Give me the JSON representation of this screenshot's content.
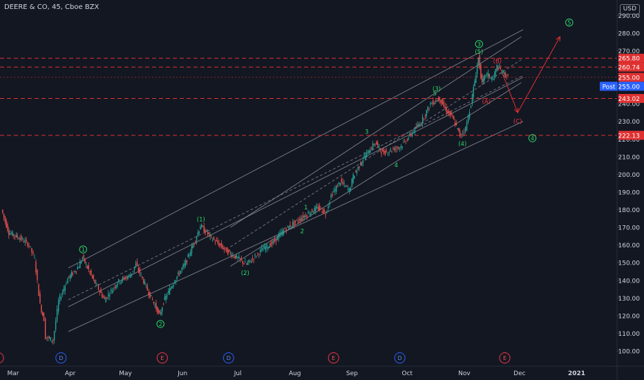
{
  "header": {
    "symbol_title": "DEERE & CO, 45, Cboe BZX",
    "currency": "USD"
  },
  "colors": {
    "background": "#131722",
    "text": "#d1d4dc",
    "up": "#26a69a",
    "down": "#ef5350",
    "channel": "#9598a1",
    "wave_green": "#2bd96a",
    "wave_red": "#f23645",
    "level_line": "#e03131",
    "post_badge": "#2962ff"
  },
  "chart_data": {
    "type": "candlestick",
    "title": "DEERE & CO, 45, Cboe BZX",
    "ylim": [
      95,
      295
    ],
    "y_ticks": [
      100,
      110,
      120,
      130,
      140,
      150,
      160,
      170,
      180,
      190,
      200,
      210,
      220,
      230,
      240,
      250,
      260,
      270,
      280,
      290
    ],
    "x_ticks": [
      "Mar",
      "Apr",
      "May",
      "Jun",
      "Jul",
      "Aug",
      "Sep",
      "Oct",
      "Nov",
      "Dec",
      "2021"
    ],
    "price_path": [
      [
        "2020-02-24",
        180
      ],
      [
        "2020-02-28",
        167
      ],
      [
        "2020-03-05",
        164
      ],
      [
        "2020-03-10",
        160
      ],
      [
        "2020-03-13",
        152
      ],
      [
        "2020-03-16",
        126
      ],
      [
        "2020-03-18",
        118
      ],
      [
        "2020-03-19",
        108
      ],
      [
        "2020-03-23",
        106
      ],
      [
        "2020-03-26",
        128
      ],
      [
        "2020-03-31",
        141
      ],
      [
        "2020-04-06",
        148
      ],
      [
        "2020-04-08",
        153
      ],
      [
        "2020-04-14",
        140
      ],
      [
        "2020-04-20",
        129
      ],
      [
        "2020-04-27",
        139
      ],
      [
        "2020-05-04",
        143
      ],
      [
        "2020-05-07",
        149
      ],
      [
        "2020-05-14",
        133
      ],
      [
        "2020-05-20",
        120
      ],
      [
        "2020-05-22",
        128
      ],
      [
        "2020-05-28",
        140
      ],
      [
        "2020-06-03",
        150
      ],
      [
        "2020-06-09",
        165
      ],
      [
        "2020-06-11",
        171
      ],
      [
        "2020-06-17",
        164
      ],
      [
        "2020-06-26",
        156
      ],
      [
        "2020-07-02",
        152
      ],
      [
        "2020-07-06",
        149
      ],
      [
        "2020-07-10",
        153
      ],
      [
        "2020-07-15",
        158
      ],
      [
        "2020-07-20",
        161
      ],
      [
        "2020-07-27",
        169
      ],
      [
        "2020-08-03",
        174
      ],
      [
        "2020-08-10",
        179
      ],
      [
        "2020-08-14",
        181
      ],
      [
        "2020-08-18",
        178
      ],
      [
        "2020-08-21",
        188
      ],
      [
        "2020-08-26",
        196
      ],
      [
        "2020-08-31",
        191
      ],
      [
        "2020-09-02",
        199
      ],
      [
        "2020-09-08",
        210
      ],
      [
        "2020-09-14",
        218
      ],
      [
        "2020-09-18",
        212
      ],
      [
        "2020-09-23",
        214
      ],
      [
        "2020-09-28",
        216
      ],
      [
        "2020-10-02",
        221
      ],
      [
        "2020-10-09",
        230
      ],
      [
        "2020-10-14",
        240
      ],
      [
        "2020-10-19",
        243
      ],
      [
        "2020-10-22",
        237
      ],
      [
        "2020-10-26",
        232
      ],
      [
        "2020-10-30",
        222
      ],
      [
        "2020-11-02",
        226
      ],
      [
        "2020-11-05",
        240
      ],
      [
        "2020-11-09",
        266
      ],
      [
        "2020-11-11",
        251
      ],
      [
        "2020-11-13",
        257
      ],
      [
        "2020-11-17",
        254
      ],
      [
        "2020-11-19",
        261
      ],
      [
        "2020-11-23",
        257
      ],
      [
        "2020-11-25",
        255
      ]
    ],
    "horizontal_levels": [
      {
        "value": 265.8,
        "label": "265.80"
      },
      {
        "value": 260.74,
        "label": "260.74"
      },
      {
        "value": 243.02,
        "label": "243.02"
      },
      {
        "value": 222.13,
        "label": "222.13"
      }
    ],
    "last_price": {
      "value": 255.0,
      "label": "255.00"
    },
    "post_price": {
      "label": "Post",
      "value_label": "255.00"
    },
    "channels": [
      {
        "from": [
          "2020-03-31",
          147
        ],
        "to": [
          "2020-12-03",
          282
        ]
      },
      {
        "from": [
          "2020-03-31",
          111
        ],
        "to": [
          "2020-12-03",
          230
        ]
      },
      {
        "from": [
          "2020-03-31",
          125
        ],
        "to": [
          "2020-12-03",
          255
        ]
      },
      {
        "from": [
          "2020-06-27",
          170
        ],
        "to": [
          "2020-12-02",
          278
        ]
      },
      {
        "from": [
          "2020-06-27",
          148
        ],
        "to": [
          "2020-12-02",
          252
        ]
      }
    ],
    "wave_labels": [
      {
        "text": "1",
        "date": "2020-04-08",
        "price": 157.5,
        "circled": true,
        "color": "green"
      },
      {
        "text": "2",
        "date": "2020-05-20",
        "price": 115.3,
        "circled": true,
        "color": "green"
      },
      {
        "text": "(1)",
        "date": "2020-06-11",
        "price": 174.5,
        "circled": false,
        "color": "green"
      },
      {
        "text": "(2)",
        "date": "2020-07-05",
        "price": 144.3,
        "circled": false,
        "color": "green"
      },
      {
        "text": "1",
        "date": "2020-08-07",
        "price": 181.3,
        "circled": false,
        "color": "green"
      },
      {
        "text": "2",
        "date": "2020-08-05",
        "price": 167.9,
        "circled": false,
        "color": "green"
      },
      {
        "text": "3",
        "date": "2020-09-09",
        "price": 224.2,
        "circled": false,
        "color": "green"
      },
      {
        "text": "4",
        "date": "2020-09-25",
        "price": 205.3,
        "circled": false,
        "color": "green"
      },
      {
        "text": "(3)",
        "date": "2020-10-17",
        "price": 248.5,
        "circled": false,
        "color": "green"
      },
      {
        "text": "5",
        "date": "2020-10-16",
        "price": 246.0,
        "circled": false,
        "color": "green"
      },
      {
        "text": "(4)",
        "date": "2020-10-31",
        "price": 217.3,
        "circled": false,
        "color": "green"
      },
      {
        "text": "3",
        "date": "2020-11-09",
        "price": 273.8,
        "circled": true,
        "color": "green"
      },
      {
        "text": "(5)",
        "date": "2020-11-09",
        "price": 269.5,
        "circled": false,
        "color": "green"
      },
      {
        "text": "(B)",
        "date": "2020-11-19",
        "price": 264.2,
        "circled": false,
        "color": "red"
      },
      {
        "text": "(A)",
        "date": "2020-11-13",
        "price": 241.2,
        "circled": false,
        "color": "red"
      },
      {
        "text": "(C)",
        "date": "2020-11-30",
        "price": 230.0,
        "circled": false,
        "color": "red"
      },
      {
        "text": "4",
        "date": "2020-12-08",
        "price": 220.5,
        "circled": true,
        "color": "green"
      },
      {
        "text": "5",
        "date": "2020-12-28",
        "price": 286.0,
        "circled": true,
        "color": "green"
      }
    ],
    "projection": [
      [
        "2020-11-21",
        259
      ],
      [
        "2020-11-30",
        235
      ],
      [
        "2020-12-23",
        278
      ]
    ],
    "events": [
      {
        "type": "E",
        "date": "2020-02-22",
        "color": "red"
      },
      {
        "type": "D",
        "date": "2020-03-27",
        "color": "blue"
      },
      {
        "type": "E",
        "date": "2020-05-21",
        "color": "red"
      },
      {
        "type": "D",
        "date": "2020-06-26",
        "color": "blue"
      },
      {
        "type": "E",
        "date": "2020-08-22",
        "color": "red"
      },
      {
        "type": "D",
        "date": "2020-09-27",
        "color": "blue"
      },
      {
        "type": "E",
        "date": "2020-11-23",
        "color": "red"
      }
    ]
  }
}
